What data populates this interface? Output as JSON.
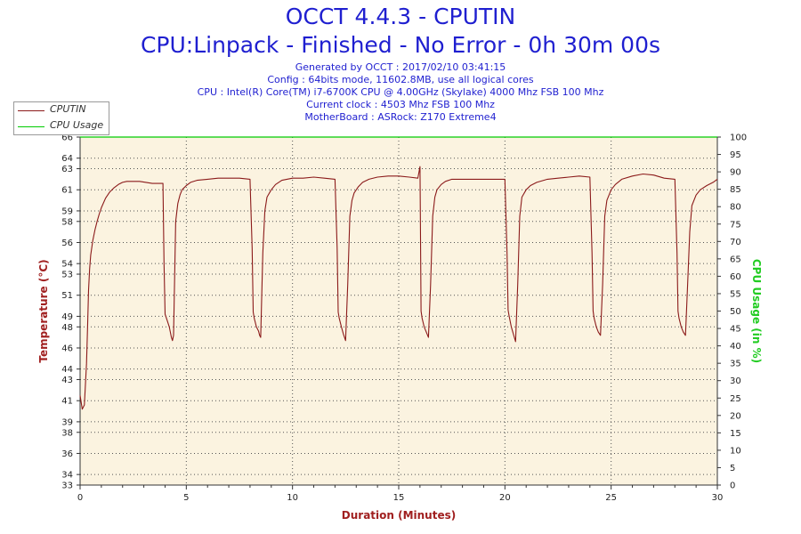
{
  "header": {
    "title": "OCCT 4.4.3 - CPUTIN",
    "subtitle": "CPU:Linpack - Finished - No Error - 0h 30m 00s",
    "info_lines": [
      "Generated by OCCT : 2017/02/10 03:41:15",
      "Config : 64bits mode, 11602.8MB, use all logical cores",
      "CPU : Intel(R) Core(TM) i7-6700K CPU @ 4.00GHz (Skylake) 4000 Mhz FSB 100 Mhz",
      "Current clock : 4503 Mhz FSB 100 Mhz",
      "MotherBoard : ASRock: Z170 Extreme4"
    ]
  },
  "colors": {
    "title": "#1f1fd0",
    "temperature": "#8b1a1a",
    "cpu_usage": "#00cc00",
    "plot_bg": "#fbf3e0",
    "grid": "#555555",
    "axis_label_y_left": "#a01f1f",
    "axis_label_y_right": "#22cc22",
    "axis_label_x": "#a01f1f"
  },
  "legend": {
    "items": [
      {
        "label": "CPUTIN"
      },
      {
        "label": "CPU Usage"
      }
    ]
  },
  "chart_data": {
    "type": "line",
    "title": "OCCT 4.4.3 - CPUTIN",
    "xlabel": "Duration (Minutes)",
    "ylabel": "Temperature (°C)",
    "y2label": "CPU Usage (in %)",
    "xlim": [
      0,
      30
    ],
    "ylim": [
      33,
      66
    ],
    "y2lim": [
      0,
      100
    ],
    "x_ticks": [
      0,
      5,
      10,
      15,
      20,
      25,
      30
    ],
    "y_ticks": [
      33,
      34,
      36,
      38,
      39,
      41,
      43,
      44,
      46,
      48,
      49,
      51,
      53,
      54,
      56,
      58,
      59,
      61,
      63,
      64,
      66
    ],
    "y2_ticks": [
      0,
      5,
      10,
      15,
      20,
      25,
      30,
      35,
      40,
      45,
      50,
      55,
      60,
      65,
      70,
      75,
      80,
      85,
      90,
      95,
      100
    ],
    "grid": true,
    "legend_position": "top-left",
    "series": [
      {
        "name": "CPUTIN",
        "axis": "left",
        "x": [
          0.0,
          0.1,
          0.2,
          0.3,
          0.35,
          0.4,
          0.45,
          0.5,
          0.6,
          0.7,
          0.8,
          0.9,
          1.0,
          1.2,
          1.4,
          1.6,
          1.8,
          2.0,
          2.2,
          2.5,
          2.8,
          3.1,
          3.4,
          3.7,
          3.9,
          3.95,
          4.0,
          4.1,
          4.2,
          4.25,
          4.3,
          4.35,
          4.4,
          4.5,
          4.6,
          4.7,
          4.8,
          5.0,
          5.2,
          5.5,
          6.0,
          6.5,
          7.0,
          7.5,
          8.0,
          8.1,
          8.15,
          8.2,
          8.3,
          8.4,
          8.45,
          8.5,
          8.6,
          8.7,
          8.8,
          9.0,
          9.2,
          9.5,
          10.0,
          10.5,
          11.0,
          11.5,
          12.0,
          12.1,
          12.15,
          12.2,
          12.3,
          12.4,
          12.5,
          12.6,
          12.7,
          12.8,
          12.9,
          13.1,
          13.3,
          13.6,
          14.0,
          14.5,
          15.0,
          15.5,
          15.9,
          16.0,
          16.05,
          16.1,
          16.2,
          16.3,
          16.4,
          16.5,
          16.6,
          16.7,
          16.8,
          17.0,
          17.2,
          17.5,
          18.0,
          18.5,
          19.0,
          19.5,
          20.0,
          20.1,
          20.15,
          20.2,
          20.3,
          20.4,
          20.5,
          20.6,
          20.7,
          20.8,
          21.0,
          21.2,
          21.5,
          22.0,
          22.5,
          23.0,
          23.5,
          24.0,
          24.1,
          24.15,
          24.2,
          24.3,
          24.4,
          24.5,
          24.6,
          24.7,
          24.8,
          25.0,
          25.2,
          25.5,
          26.0,
          26.5,
          27.0,
          27.5,
          28.0,
          28.1,
          28.15,
          28.2,
          28.3,
          28.4,
          28.5,
          28.6,
          28.7,
          28.8,
          29.0,
          29.2,
          29.5,
          29.8,
          30.0
        ],
        "values": [
          41.5,
          40.2,
          40.6,
          44.5,
          48.0,
          51.5,
          53.5,
          54.8,
          56.2,
          57.2,
          58.0,
          58.7,
          59.3,
          60.2,
          60.8,
          61.2,
          61.5,
          61.7,
          61.8,
          61.8,
          61.8,
          61.7,
          61.6,
          61.6,
          61.6,
          54.0,
          49.2,
          48.6,
          48.0,
          47.5,
          47.0,
          46.7,
          47.2,
          58.0,
          59.7,
          60.5,
          61.0,
          61.4,
          61.7,
          61.9,
          62.0,
          62.1,
          62.1,
          62.1,
          62.0,
          55.5,
          49.4,
          48.8,
          48.0,
          47.6,
          47.2,
          47.0,
          55.0,
          59.0,
          60.3,
          61.0,
          61.5,
          61.9,
          62.1,
          62.1,
          62.2,
          62.1,
          62.0,
          55.5,
          49.4,
          48.8,
          48.0,
          47.3,
          46.7,
          52.0,
          58.5,
          60.0,
          60.7,
          61.3,
          61.7,
          62.0,
          62.2,
          62.3,
          62.3,
          62.2,
          62.1,
          63.2,
          49.5,
          48.8,
          48.0,
          47.5,
          47.0,
          52.0,
          58.5,
          60.3,
          61.0,
          61.5,
          61.8,
          62.0,
          62.0,
          62.0,
          62.0,
          62.0,
          62.0,
          55.0,
          49.6,
          49.0,
          48.0,
          47.3,
          46.6,
          52.0,
          58.5,
          60.3,
          61.0,
          61.4,
          61.7,
          62.0,
          62.1,
          62.2,
          62.3,
          62.2,
          55.0,
          49.5,
          48.8,
          48.0,
          47.5,
          47.2,
          52.0,
          58.5,
          60.0,
          61.0,
          61.5,
          62.0,
          62.3,
          62.5,
          62.4,
          62.1,
          62.0,
          55.0,
          49.5,
          48.8,
          48.0,
          47.5,
          47.2,
          52.0,
          57.0,
          59.5,
          60.5,
          61.0,
          61.4,
          61.7,
          62.0
        ]
      },
      {
        "name": "CPU Usage",
        "axis": "right",
        "x": [
          0,
          30
        ],
        "values": [
          100,
          100
        ]
      }
    ]
  }
}
